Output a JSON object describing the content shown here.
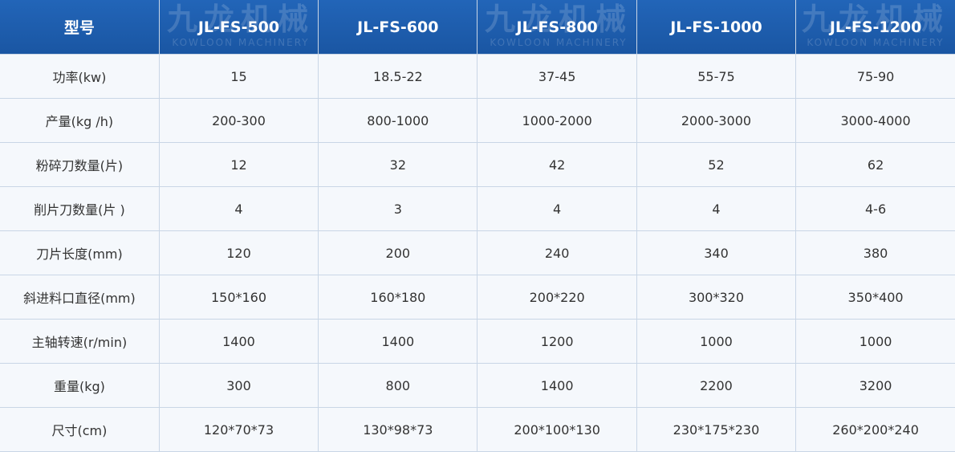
{
  "table": {
    "header": [
      "型号",
      "JL-FS-500",
      "JL-FS-600",
      "JL-FS-800",
      "JL-FS-1000",
      "JL-FS-1200"
    ],
    "rows": [
      [
        "功率(kw)",
        "15",
        "18.5-22",
        "37-45",
        "55-75",
        "75-90"
      ],
      [
        "产量(kg /h)",
        "200-300",
        "800-1000",
        "1000-2000",
        "2000-3000",
        "3000-4000"
      ],
      [
        "粉碎刀数量(片)",
        "12",
        "32",
        "42",
        "52",
        "62"
      ],
      [
        "削片刀数量(片 )",
        "4",
        "3",
        "4",
        "4",
        "4-6"
      ],
      [
        "刀片长度(mm)",
        "120",
        "200",
        "240",
        "340",
        "380"
      ],
      [
        "斜进料口直径(mm)",
        "150*160",
        "160*180",
        "200*220",
        "300*320",
        "350*400"
      ],
      [
        "主轴转速(r/min)",
        "1400",
        "1400",
        "1200",
        "1000",
        "1000"
      ],
      [
        "重量(kg)",
        "300",
        "800",
        "1400",
        "2200",
        "3200"
      ],
      [
        "尺寸(cm)",
        "120*70*73",
        "130*98*73",
        "200*100*130",
        "230*175*230",
        "260*200*240"
      ]
    ]
  },
  "watermark": {
    "brand": "九龙机械",
    "tagline": "KOWLOON MACHINERY"
  }
}
